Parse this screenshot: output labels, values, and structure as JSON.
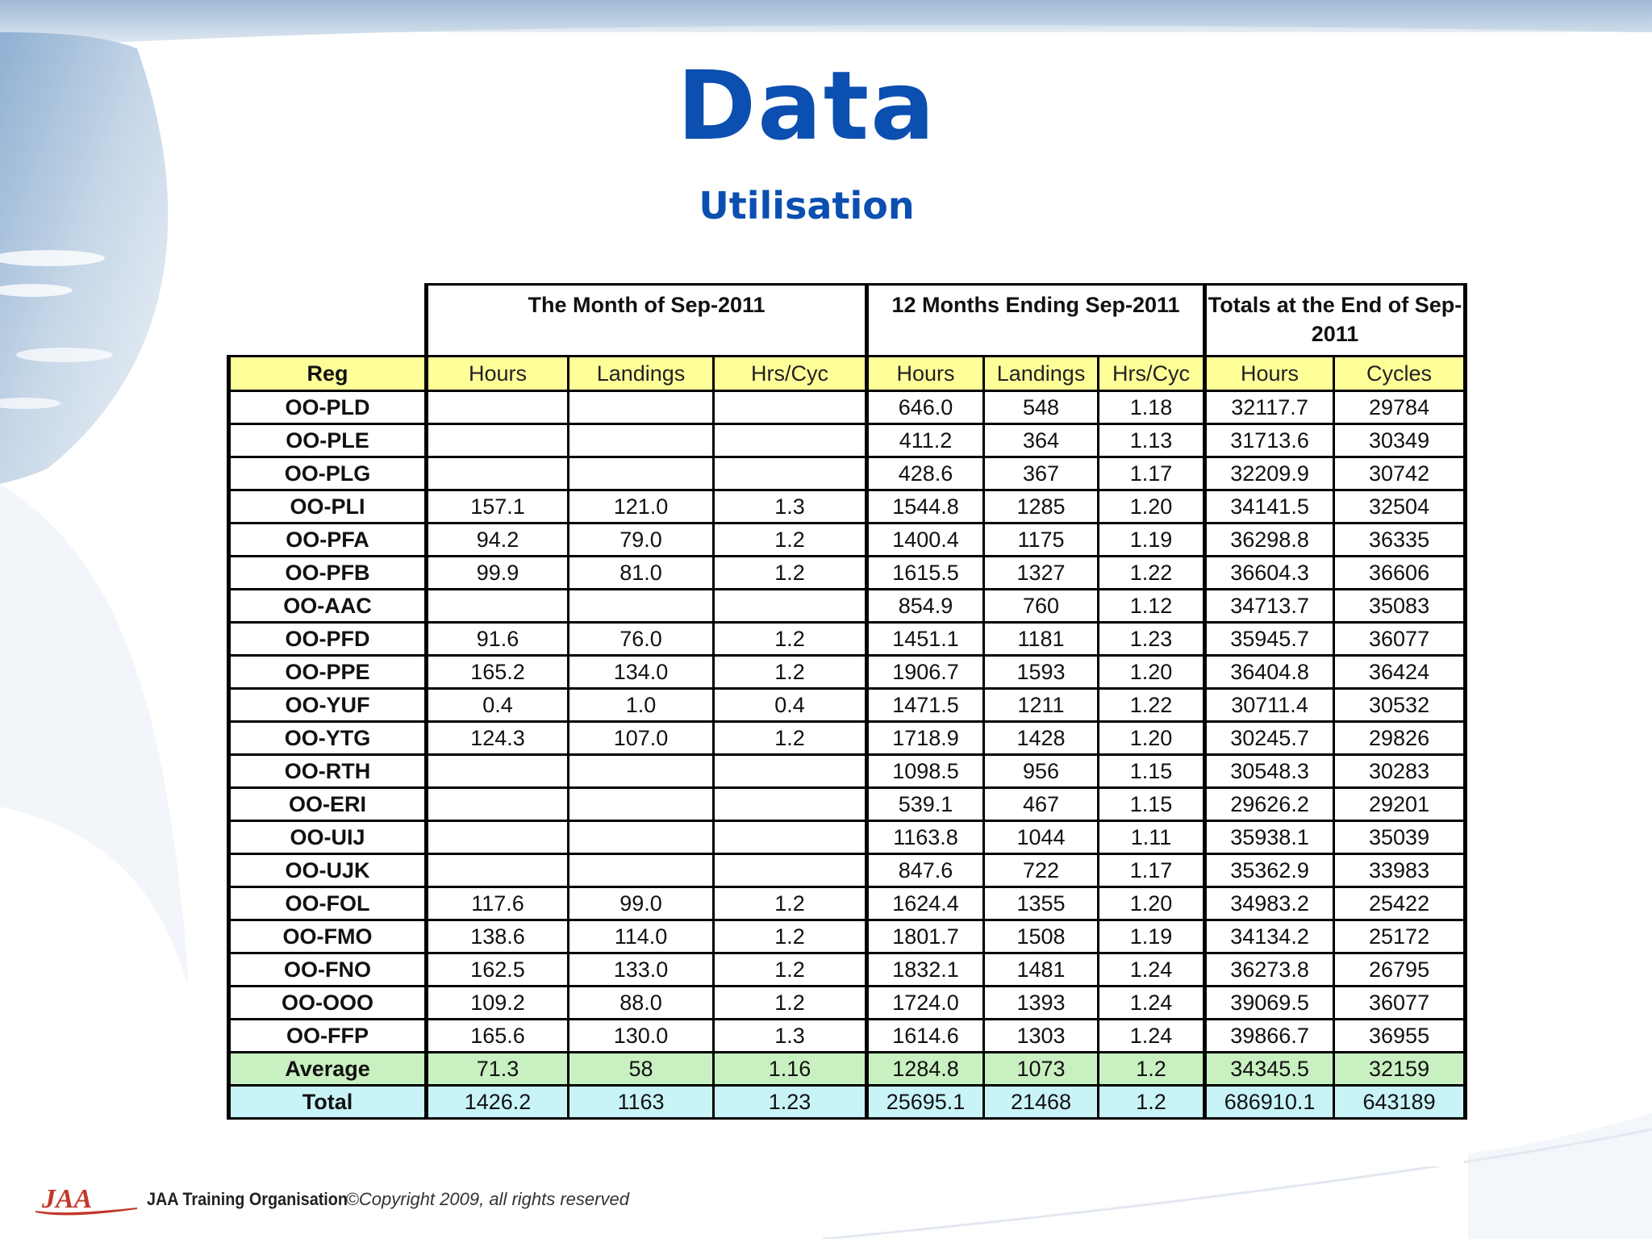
{
  "slide": {
    "title": "Data",
    "subtitle": "Utilisation"
  },
  "table": {
    "groups": {
      "month": "The Month of Sep-2011",
      "twelve": "12 Months Ending Sep-2011",
      "totals": "Totals at the End of Sep-2011"
    },
    "columns": [
      "Reg",
      "Hours",
      "Landings",
      "Hrs/Cyc",
      "Hours",
      "Landings",
      "Hrs/Cyc",
      "Hours",
      "Cycles"
    ],
    "rows": [
      [
        "OO-PLD",
        "",
        "",
        "",
        "646.0",
        "548",
        "1.18",
        "32117.7",
        "29784"
      ],
      [
        "OO-PLE",
        "",
        "",
        "",
        "411.2",
        "364",
        "1.13",
        "31713.6",
        "30349"
      ],
      [
        "OO-PLG",
        "",
        "",
        "",
        "428.6",
        "367",
        "1.17",
        "32209.9",
        "30742"
      ],
      [
        "OO-PLI",
        "157.1",
        "121.0",
        "1.3",
        "1544.8",
        "1285",
        "1.20",
        "34141.5",
        "32504"
      ],
      [
        "OO-PFA",
        "94.2",
        "79.0",
        "1.2",
        "1400.4",
        "1175",
        "1.19",
        "36298.8",
        "36335"
      ],
      [
        "OO-PFB",
        "99.9",
        "81.0",
        "1.2",
        "1615.5",
        "1327",
        "1.22",
        "36604.3",
        "36606"
      ],
      [
        "OO-AAC",
        "",
        "",
        "",
        "854.9",
        "760",
        "1.12",
        "34713.7",
        "35083"
      ],
      [
        "OO-PFD",
        "91.6",
        "76.0",
        "1.2",
        "1451.1",
        "1181",
        "1.23",
        "35945.7",
        "36077"
      ],
      [
        "OO-PPE",
        "165.2",
        "134.0",
        "1.2",
        "1906.7",
        "1593",
        "1.20",
        "36404.8",
        "36424"
      ],
      [
        "OO-YUF",
        "0.4",
        "1.0",
        "0.4",
        "1471.5",
        "1211",
        "1.22",
        "30711.4",
        "30532"
      ],
      [
        "OO-YTG",
        "124.3",
        "107.0",
        "1.2",
        "1718.9",
        "1428",
        "1.20",
        "30245.7",
        "29826"
      ],
      [
        "OO-RTH",
        "",
        "",
        "",
        "1098.5",
        "956",
        "1.15",
        "30548.3",
        "30283"
      ],
      [
        "OO-ERI",
        "",
        "",
        "",
        "539.1",
        "467",
        "1.15",
        "29626.2",
        "29201"
      ],
      [
        "OO-UIJ",
        "",
        "",
        "",
        "1163.8",
        "1044",
        "1.11",
        "35938.1",
        "35039"
      ],
      [
        "OO-UJK",
        "",
        "",
        "",
        "847.6",
        "722",
        "1.17",
        "35362.9",
        "33983"
      ],
      [
        "OO-FOL",
        "117.6",
        "99.0",
        "1.2",
        "1624.4",
        "1355",
        "1.20",
        "34983.2",
        "25422"
      ],
      [
        "OO-FMO",
        "138.6",
        "114.0",
        "1.2",
        "1801.7",
        "1508",
        "1.19",
        "34134.2",
        "25172"
      ],
      [
        "OO-FNO",
        "162.5",
        "133.0",
        "1.2",
        "1832.1",
        "1481",
        "1.24",
        "36273.8",
        "26795"
      ],
      [
        "OO-OOO",
        "109.2",
        "88.0",
        "1.2",
        "1724.0",
        "1393",
        "1.24",
        "39069.5",
        "36077"
      ],
      [
        "OO-FFP",
        "165.6",
        "130.0",
        "1.3",
        "1614.6",
        "1303",
        "1.24",
        "39866.7",
        "36955"
      ]
    ],
    "average": [
      "Average",
      "71.3",
      "58",
      "1.16",
      "1284.8",
      "1073",
      "1.2",
      "34345.5",
      "32159"
    ],
    "total": [
      "Total",
      "1426.2",
      "1163",
      "1.23",
      "25695.1",
      "21468",
      "1.2",
      "686910.1",
      "643189"
    ]
  },
  "footer": {
    "logo_text": "JAA",
    "org": "JAA Training Organisation",
    "copyright": "©Copyright 2009, all rights reserved"
  },
  "colors": {
    "title": "#0b4fb0",
    "header_row": "#ffff99",
    "average_row": "#c8f0c0",
    "total_row": "#c8f4f8",
    "logo": "#c0392b"
  }
}
